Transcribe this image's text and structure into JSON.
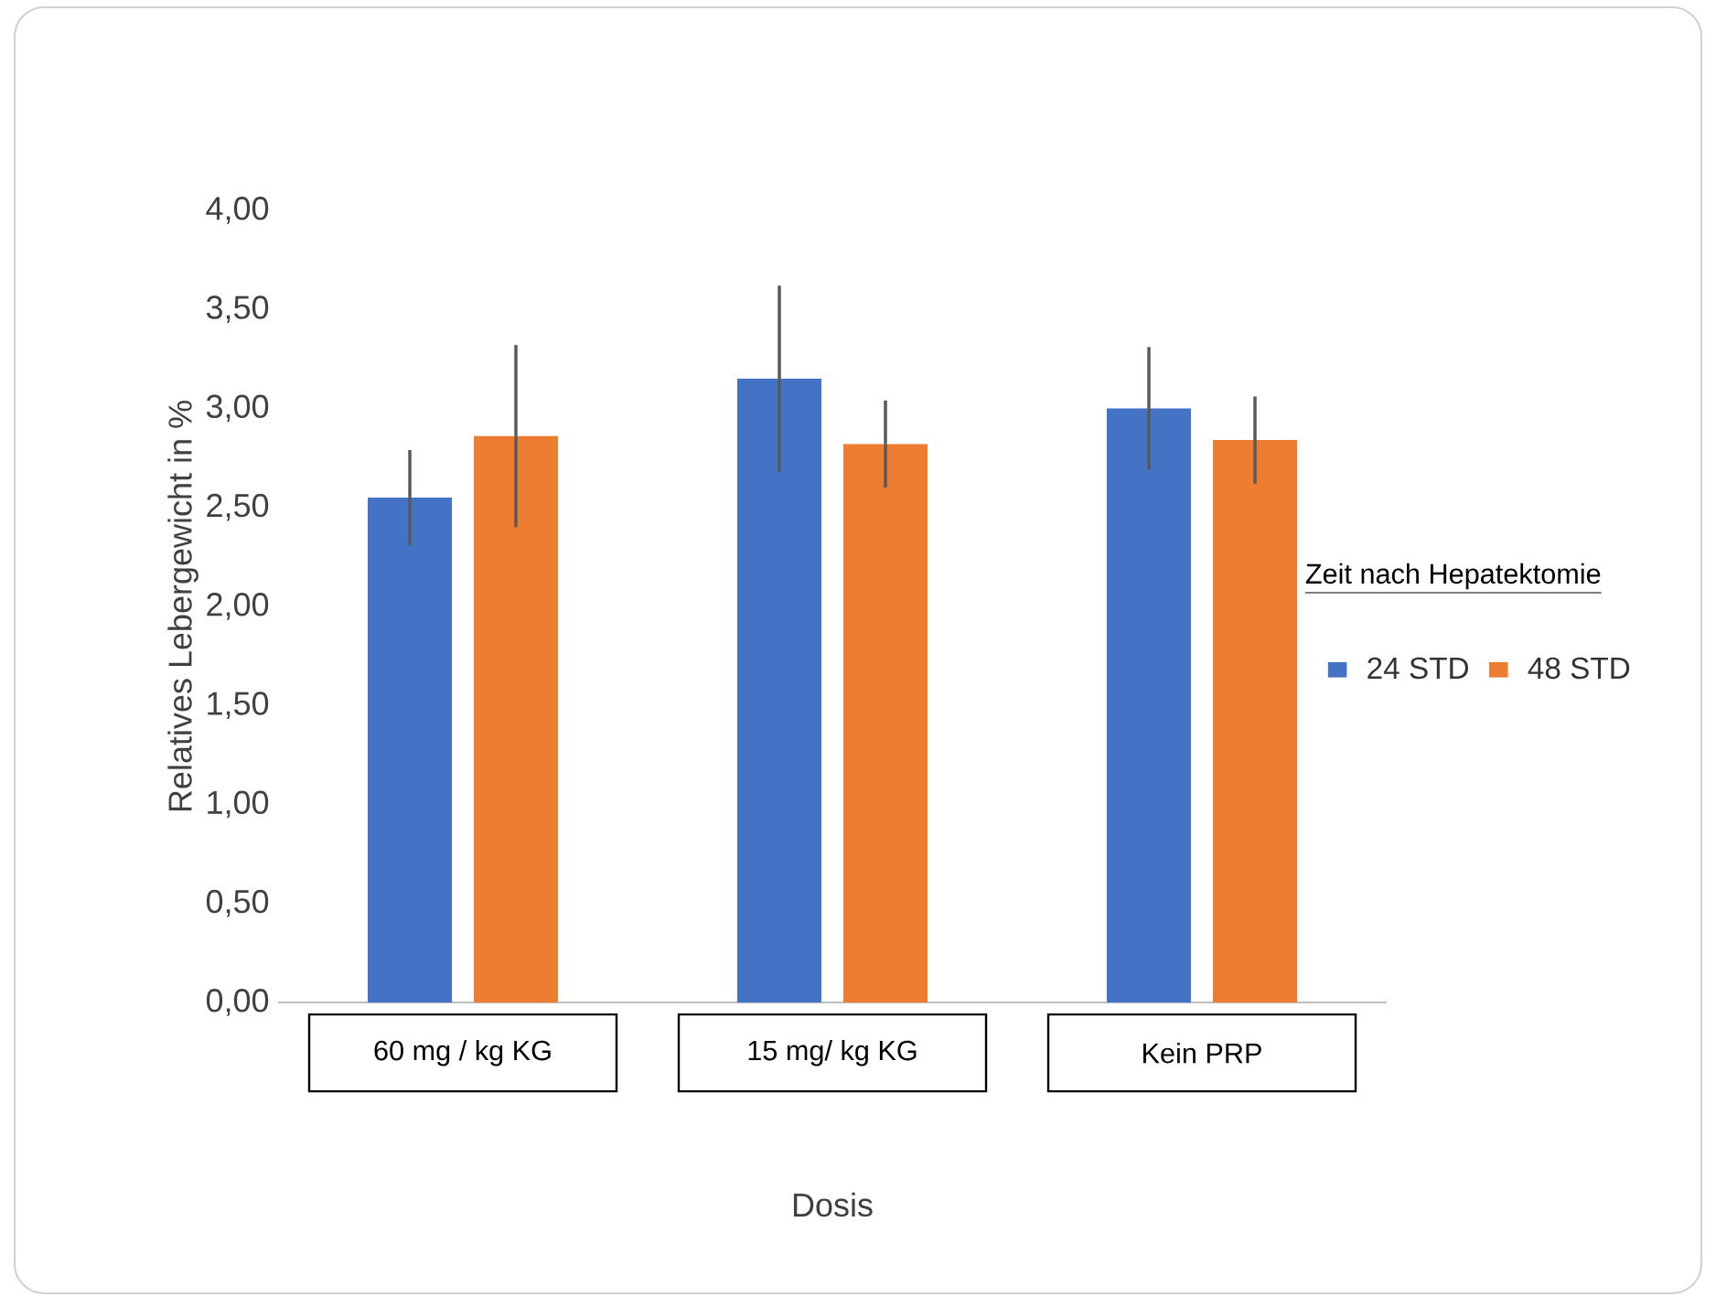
{
  "chart_data": {
    "type": "bar",
    "xlabel": "Dosis",
    "ylabel": "Relatives Lebergewicht in %",
    "legend_title": "Zeit nach Hepatektomie",
    "categories": [
      "60 mg / kg KG",
      "15 mg/ kg KG",
      "Kein PRP"
    ],
    "series": [
      {
        "name": "24 STD",
        "color": "#4472c4",
        "values": [
          2.55,
          3.15,
          3.0
        ],
        "errors": [
          0.24,
          0.47,
          0.31
        ]
      },
      {
        "name": "48 STD",
        "color": "#ed7d31",
        "values": [
          2.86,
          2.82,
          2.84
        ],
        "errors": [
          0.46,
          0.22,
          0.22
        ]
      }
    ],
    "ylim": [
      0,
      4
    ],
    "yticks": [
      {
        "value": 0,
        "label": "0,00"
      },
      {
        "value": 0.5,
        "label": "0,50"
      },
      {
        "value": 1,
        "label": "1,00"
      },
      {
        "value": 1.5,
        "label": "1,50"
      },
      {
        "value": 2,
        "label": "2,00"
      },
      {
        "value": 2.5,
        "label": "2,50"
      },
      {
        "value": 3,
        "label": "3,00"
      },
      {
        "value": 3.5,
        "label": "3,50"
      },
      {
        "value": 4,
        "label": "4,00"
      }
    ],
    "grid": false,
    "legend": "right"
  }
}
